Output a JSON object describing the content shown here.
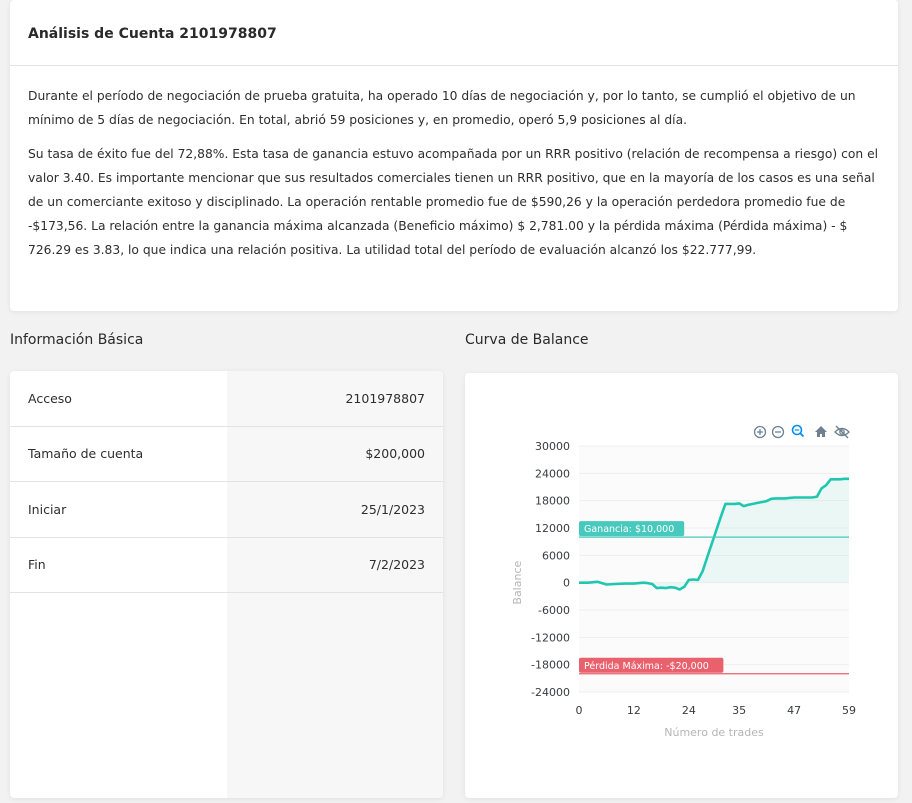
{
  "analysis": {
    "title": "Análisis de Cuenta 2101978807",
    "paragraph1": "Durante el período de negociación de prueba gratuita, ha operado 10 días de negociación y, por lo tanto, se cumplió el objetivo de un mínimo de 5 días de negociación. En total, abrió 59 posiciones y, en promedio, operó 5,9 posiciones al día.",
    "paragraph2": "Su tasa de éxito fue del 72,88%. Esta tasa de ganancia estuvo acompañada por un RRR positivo (relación de recompensa a riesgo) con el valor 3.40. Es importante mencionar que sus resultados comerciales tienen un RRR positivo, que en la mayoría de los casos es una señal de un comerciante exitoso y disciplinado. La operación rentable promedio fue de $590,26 y la operación perdedora promedio fue de -$173,56. La relación entre la ganancia máxima alcanzada (Beneficio máximo) $ 2,781.00 y la pérdida máxima (Pérdida máxima) - $ 726.29 es 3.83, lo que indica una relación positiva. La utilidad total del período de evaluación alcanzó los $22.777,99."
  },
  "basic_info": {
    "title": "Información Básica",
    "rows": [
      {
        "label": "Acceso",
        "value": "2101978807"
      },
      {
        "label": "Tamaño de cuenta",
        "value": "$200,000"
      },
      {
        "label": "Iniciar",
        "value": "25/1/2023"
      },
      {
        "label": "Fin",
        "value": "7/2/2023"
      }
    ]
  },
  "balance_curve": {
    "title": "Curva de Balance",
    "toolbar": [
      "zoom-in-icon",
      "zoom-out-icon",
      "magnifier-icon",
      "home-icon",
      "eye-off-icon"
    ]
  },
  "colors": {
    "line": "#1fc7b0",
    "profit": "#48c9be",
    "loss": "#e8616d"
  },
  "chart_data": {
    "type": "area",
    "xlabel": "Número de trades",
    "ylabel": "Balance",
    "xlim": [
      0,
      59
    ],
    "ylim": [
      -24000,
      30000
    ],
    "x_ticks": [
      "0",
      "12",
      "24",
      "35",
      "47",
      "59"
    ],
    "y_ticks": [
      "30000",
      "24000",
      "18000",
      "12000",
      "6000",
      "0",
      "-6000",
      "-12000",
      "-18000",
      "-24000"
    ],
    "series": [
      {
        "x": [
          0,
          2,
          4,
          6,
          8,
          10,
          12,
          14,
          15,
          16,
          17,
          18,
          19,
          20,
          21,
          22,
          23,
          24,
          25,
          26,
          27,
          28,
          29,
          30,
          31,
          32,
          33,
          34,
          35,
          36,
          37,
          38,
          39,
          40,
          41,
          42,
          43,
          44,
          45,
          46,
          47,
          48,
          49,
          50,
          51,
          52,
          53,
          54,
          55,
          56,
          57,
          58,
          59
        ],
        "y": [
          0,
          0,
          200,
          -400,
          -300,
          -200,
          -200,
          0,
          -100,
          -300,
          -1200,
          -1100,
          -1200,
          -1000,
          -1100,
          -1500,
          -900,
          600,
          700,
          600,
          2500,
          5500,
          8500,
          11500,
          14500,
          17300,
          17300,
          17300,
          17400,
          16800,
          17100,
          17300,
          17500,
          17700,
          17900,
          18400,
          18500,
          18500,
          18500,
          18600,
          18700,
          18700,
          18700,
          18700,
          18700,
          18900,
          20700,
          21400,
          22700,
          22700,
          22700,
          22800,
          22800
        ]
      }
    ],
    "annotations": [
      {
        "label": "Ganancia: $10,000",
        "y": 10000
      },
      {
        "label": "Pérdida Máxima: -$20,000",
        "y": -20000
      }
    ],
    "grid": true,
    "legend": "none"
  }
}
